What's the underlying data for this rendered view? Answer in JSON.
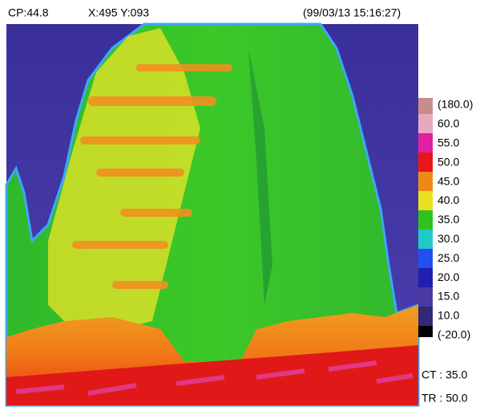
{
  "header": {
    "cp": "CP:44.8",
    "position": "X:495 Y:093",
    "datetime": "(99/03/13 15:16:27)"
  },
  "scale": {
    "labels": [
      "(180.0)",
      "60.0",
      "55.0",
      "50.0",
      "45.0",
      "40.0",
      "35.0",
      "30.0",
      "25.0",
      "20.0",
      "15.0",
      "10.0",
      "(-20.0)"
    ]
  },
  "footer": {
    "ct": "CT : 35.0",
    "tr": "TR : 50.0"
  }
}
